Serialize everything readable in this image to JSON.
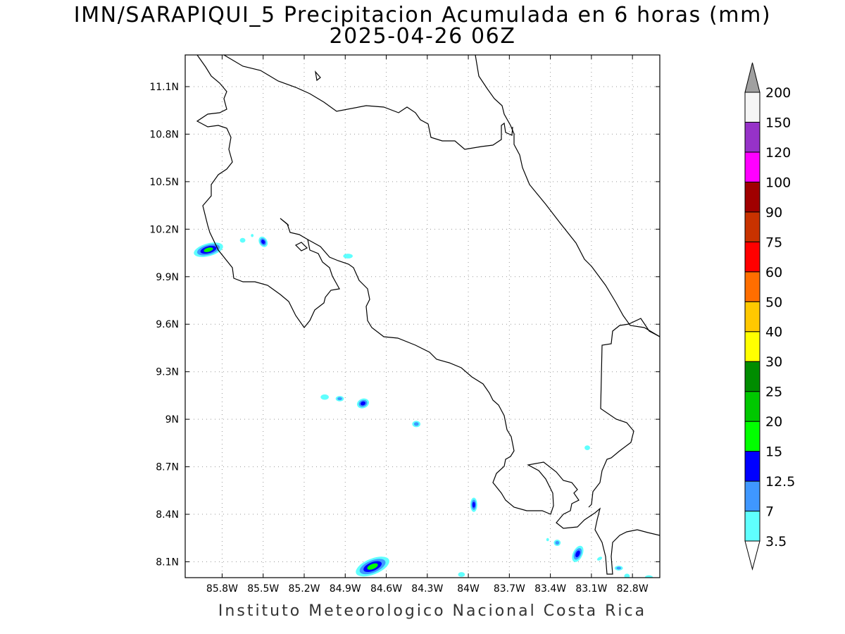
{
  "title": {
    "line1": "IMN/SARAPIQUI_5 Precipitacion Acumulada en 6 horas (mm)",
    "line2": "2025-04-26 06Z"
  },
  "credit": "Instituto Meteorologico Nacional Costa Rica",
  "map": {
    "lon_range": [
      -86.07,
      -82.6
    ],
    "lat_range": [
      8.0,
      11.3
    ],
    "x_ticks": [
      {
        "lon": -85.8,
        "label": "85.8W"
      },
      {
        "lon": -85.5,
        "label": "85.5W"
      },
      {
        "lon": -85.2,
        "label": "85.2W"
      },
      {
        "lon": -84.9,
        "label": "84.9W"
      },
      {
        "lon": -84.6,
        "label": "84.6W"
      },
      {
        "lon": -84.3,
        "label": "84.3W"
      },
      {
        "lon": -84.0,
        "label": "84W"
      },
      {
        "lon": -83.7,
        "label": "83.7W"
      },
      {
        "lon": -83.4,
        "label": "83.4W"
      },
      {
        "lon": -83.1,
        "label": "83.1W"
      },
      {
        "lon": -82.8,
        "label": "82.8W"
      }
    ],
    "y_ticks": [
      {
        "lat": 11.1,
        "label": "11.1N"
      },
      {
        "lat": 10.8,
        "label": "10.8N"
      },
      {
        "lat": 10.5,
        "label": "10.5N"
      },
      {
        "lat": 10.2,
        "label": "10.2N"
      },
      {
        "lat": 9.9,
        "label": "9.9N"
      },
      {
        "lat": 9.6,
        "label": "9.6N"
      },
      {
        "lat": 9.3,
        "label": "9.3N"
      },
      {
        "lat": 9.0,
        "label": "9N"
      },
      {
        "lat": 8.7,
        "label": "8.7N"
      },
      {
        "lat": 8.4,
        "label": "8.4N"
      },
      {
        "lat": 8.1,
        "label": "8.1N"
      }
    ],
    "grid": "dotted",
    "precip_cells": [
      {
        "lon": -85.9,
        "lat": 10.07,
        "level": 15,
        "rlon": 0.11,
        "rlat": 0.04,
        "rot": 15
      },
      {
        "lon": -85.65,
        "lat": 10.13,
        "level": 3.5,
        "rlon": 0.02,
        "rlat": 0.015,
        "rot": 0
      },
      {
        "lon": -85.5,
        "lat": 10.12,
        "level": 12.5,
        "rlon": 0.03,
        "rlat": 0.035,
        "rot": 30
      },
      {
        "lon": -85.58,
        "lat": 10.16,
        "level": 3.5,
        "rlon": 0.01,
        "rlat": 0.01,
        "rot": 0
      },
      {
        "lon": -84.88,
        "lat": 10.03,
        "level": 3.5,
        "rlon": 0.035,
        "rlat": 0.015,
        "rot": 0
      },
      {
        "lon": -85.05,
        "lat": 9.14,
        "level": 3.5,
        "rlon": 0.03,
        "rlat": 0.017,
        "rot": 0
      },
      {
        "lon": -84.94,
        "lat": 9.13,
        "level": 7,
        "rlon": 0.03,
        "rlat": 0.017,
        "rot": 0
      },
      {
        "lon": -84.77,
        "lat": 9.1,
        "level": 12.5,
        "rlon": 0.045,
        "rlat": 0.03,
        "rot": 20
      },
      {
        "lon": -84.38,
        "lat": 8.97,
        "level": 7,
        "rlon": 0.03,
        "rlat": 0.02,
        "rot": 0
      },
      {
        "lon": -84.7,
        "lat": 8.07,
        "level": 15,
        "rlon": 0.13,
        "rlat": 0.05,
        "rot": 22
      },
      {
        "lon": -84.05,
        "lat": 8.02,
        "level": 3.5,
        "rlon": 0.025,
        "rlat": 0.015,
        "rot": 0
      },
      {
        "lon": -83.96,
        "lat": 8.46,
        "level": 12.5,
        "rlon": 0.025,
        "rlat": 0.045,
        "rot": 0
      },
      {
        "lon": -83.13,
        "lat": 8.82,
        "level": 3.5,
        "rlon": 0.02,
        "rlat": 0.015,
        "rot": 0
      },
      {
        "lon": -83.35,
        "lat": 8.22,
        "level": 7,
        "rlon": 0.025,
        "rlat": 0.02,
        "rot": 0
      },
      {
        "lon": -83.42,
        "lat": 8.24,
        "level": 3.5,
        "rlon": 0.01,
        "rlat": 0.01,
        "rot": 0
      },
      {
        "lon": -83.2,
        "lat": 8.15,
        "level": 12.5,
        "rlon": 0.035,
        "rlat": 0.055,
        "rot": -25
      },
      {
        "lon": -83.04,
        "lat": 8.12,
        "level": 3.5,
        "rlon": 0.02,
        "rlat": 0.01,
        "rot": 30
      },
      {
        "lon": -82.9,
        "lat": 8.06,
        "level": 7,
        "rlon": 0.03,
        "rlat": 0.015,
        "rot": 0
      },
      {
        "lon": -82.84,
        "lat": 8.01,
        "level": 3.5,
        "rlon": 0.02,
        "rlat": 0.015,
        "rot": 0
      },
      {
        "lon": -82.68,
        "lat": 8.0,
        "level": 3.5,
        "rlon": 0.03,
        "rlat": 0.015,
        "rot": 0
      }
    ]
  },
  "colorbar": {
    "unit": "mm",
    "levels": [
      {
        "label": "3.5",
        "color": "#5ffffe"
      },
      {
        "label": "7",
        "color": "#3f97ff"
      },
      {
        "label": "12.5",
        "color": "#0000ff"
      },
      {
        "label": "15",
        "color": "#01ff00"
      },
      {
        "label": "20",
        "color": "#00c800"
      },
      {
        "label": "25",
        "color": "#008c00"
      },
      {
        "label": "30",
        "color": "#ffff00"
      },
      {
        "label": "40",
        "color": "#ffc800"
      },
      {
        "label": "50",
        "color": "#ff6e00"
      },
      {
        "label": "60",
        "color": "#ff0000"
      },
      {
        "label": "75",
        "color": "#c83200"
      },
      {
        "label": "90",
        "color": "#a00000"
      },
      {
        "label": "100",
        "color": "#ff00ff"
      },
      {
        "label": "120",
        "color": "#9632c8"
      },
      {
        "label": "150",
        "color": "#f5f5f5"
      },
      {
        "label": "200",
        "color": "#a0a0a0"
      }
    ]
  }
}
